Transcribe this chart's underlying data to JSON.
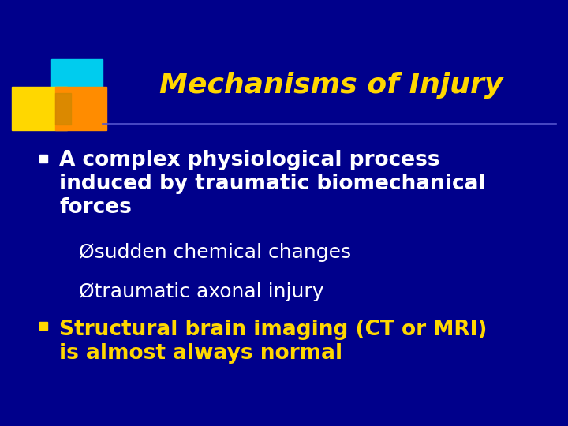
{
  "background_color": "#00008B",
  "title": "Mechanisms of Injury",
  "title_color": "#FFD700",
  "title_fontsize": 26,
  "bullet1_text_line1": "A complex physiological process",
  "bullet1_text_line2": "induced by traumatic biomechanical",
  "bullet1_text_line3": "forces",
  "sub1": "Øsudden chemical changes",
  "sub2": "Øtraumatic axonal injury",
  "bullet2_text_line1": "Structural brain imaging (CT or MRI)",
  "bullet2_text_line2": "is almost always normal",
  "body_color": "#FFFFFF",
  "yellow_color": "#FFD700",
  "body_fontsize": 19,
  "sub_fontsize": 18,
  "logo_cyan": "#00CCEE",
  "logo_yellow": "#FFD700",
  "logo_orange": "#FF8C00",
  "logo_dark_orange": "#CC8800"
}
